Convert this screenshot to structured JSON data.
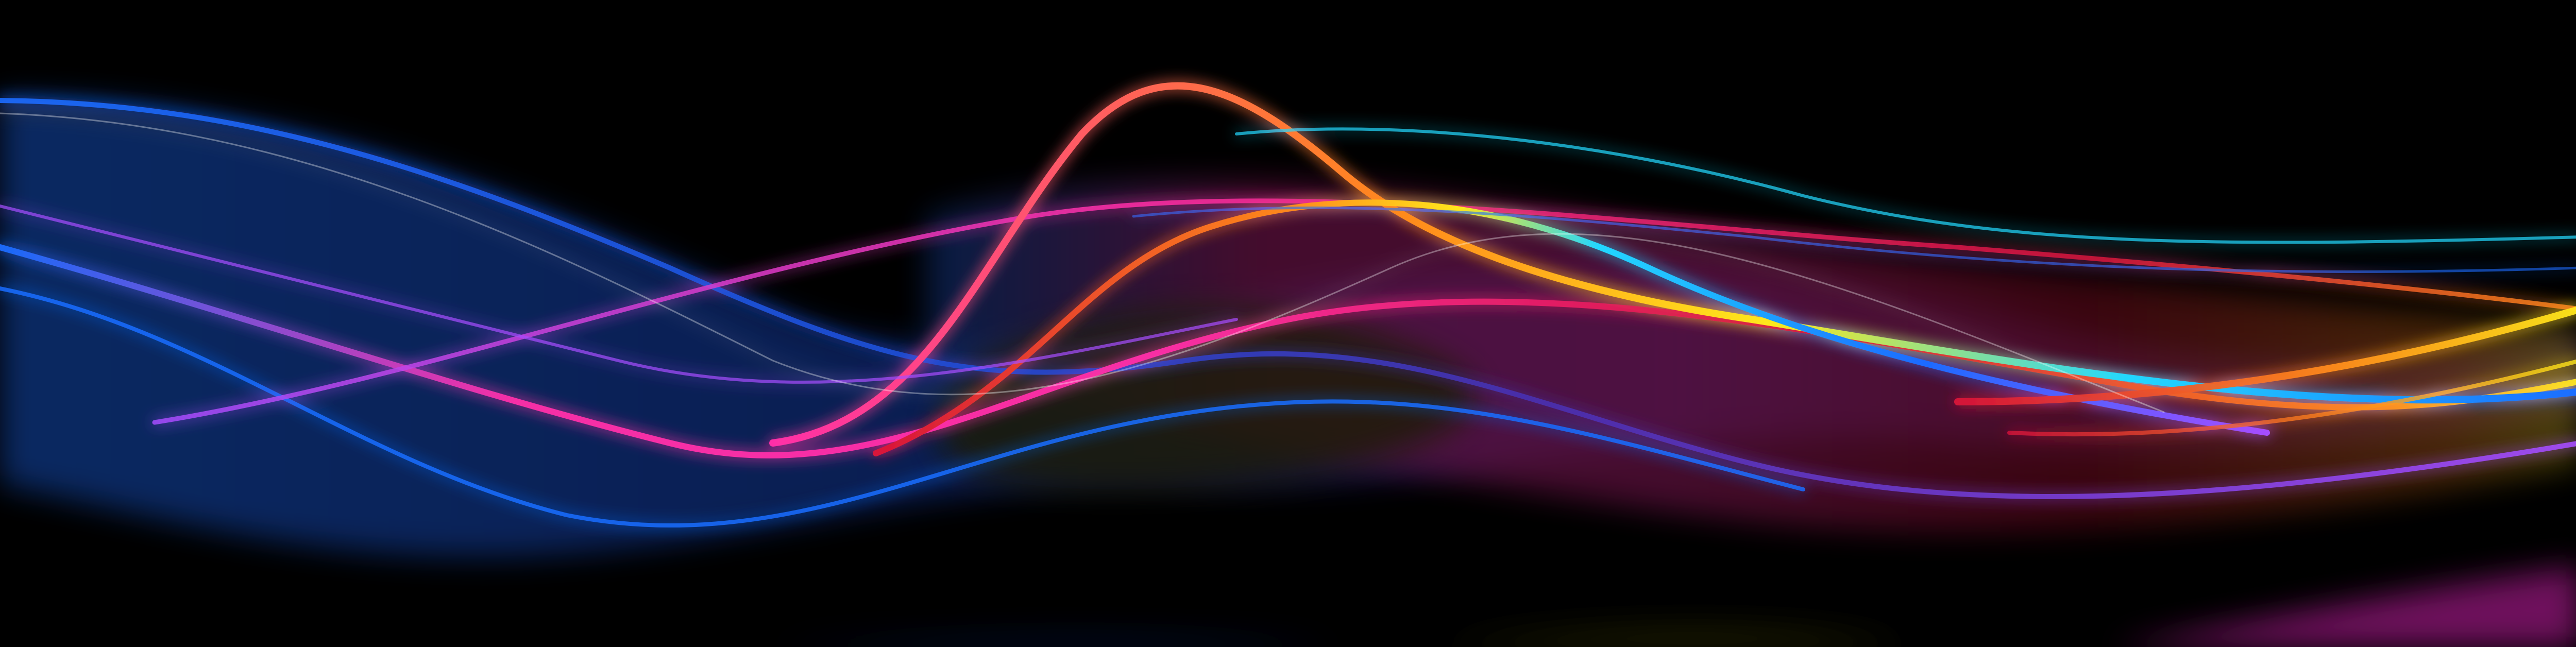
{
  "background_color": "#000000",
  "palette": {
    "blue": "#1a6cff",
    "deep_blue": "#1c4fd8",
    "cyan": "#22d8ff",
    "yellow": "#ffe81a",
    "orange": "#ff8a1a",
    "magenta": "#ff2fa8",
    "violet": "#a64dff",
    "red": "#d8143a"
  },
  "ribbons": [
    {
      "name": "blue-ribbon",
      "colors": [
        "deep_blue",
        "blue",
        "violet"
      ]
    },
    {
      "name": "yellow-cyan-ribbon",
      "colors": [
        "orange",
        "yellow",
        "cyan",
        "blue"
      ]
    },
    {
      "name": "magenta-ribbon",
      "colors": [
        "blue",
        "magenta",
        "red",
        "yellow"
      ]
    },
    {
      "name": "violet-ribbon",
      "colors": [
        "violet",
        "magenta",
        "orange"
      ]
    }
  ]
}
